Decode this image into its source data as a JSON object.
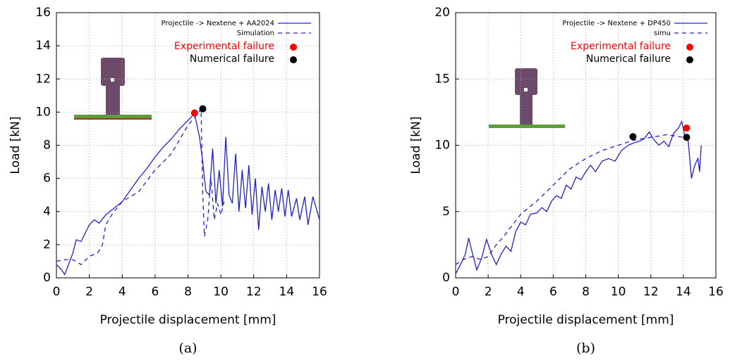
{
  "chart_data": [
    {
      "type": "line",
      "caption": "(a)",
      "xlabel": "Projectile displacement [mm]",
      "ylabel": "Load [kN]",
      "xlim": [
        0,
        16
      ],
      "ylim": [
        0,
        16
      ],
      "xticks": [
        0,
        2,
        4,
        6,
        8,
        10,
        12,
        14,
        16
      ],
      "yticks": [
        0,
        2,
        4,
        6,
        8,
        10,
        12,
        14,
        16
      ],
      "grid": true,
      "legend": "upper right",
      "series": [
        {
          "name": "Projectile -> Nextene + AA2024",
          "color": "#1f1fd0",
          "style": "solid",
          "x": [
            0,
            0.3,
            0.5,
            0.7,
            1,
            1.2,
            1.5,
            1.8,
            2,
            2.3,
            2.6,
            3,
            3.5,
            4,
            4.5,
            5,
            5.5,
            6,
            6.5,
            7,
            7.5,
            8,
            8.4,
            8.7,
            8.9,
            9.0,
            9.1,
            9.3,
            9.5,
            9.7,
            9.9,
            10.1,
            10.3,
            10.5,
            10.7,
            10.9,
            11.1,
            11.3,
            11.5,
            11.7,
            11.9,
            12.1,
            12.3,
            12.5,
            12.7,
            12.9,
            13.1,
            13.3,
            13.5,
            13.7,
            13.9,
            14.1,
            14.3,
            14.6,
            14.8,
            15.1,
            15.3,
            15.6,
            16
          ],
          "values": [
            0.8,
            0.5,
            0.2,
            0.7,
            1.5,
            2.3,
            2.2,
            2.8,
            3.2,
            3.5,
            3.3,
            3.8,
            4.2,
            4.6,
            5.3,
            6.0,
            6.6,
            7.3,
            7.9,
            8.4,
            9.0,
            9.5,
            9.9,
            8.5,
            7.0,
            6.0,
            5.2,
            5.0,
            7.8,
            4.5,
            6.5,
            4.3,
            8.5,
            5.0,
            4.5,
            7.5,
            4.0,
            6.5,
            4.2,
            6.8,
            3.8,
            6.0,
            2.9,
            5.5,
            4.0,
            5.7,
            3.5,
            5.3,
            4.0,
            5.4,
            3.7,
            5.3,
            3.7,
            4.8,
            3.5,
            4.9,
            3.2,
            4.9,
            3.5
          ]
        },
        {
          "name": "Simulation",
          "color": "#1f1fd0",
          "style": "dashed",
          "x": [
            0,
            0.5,
            1,
            1.5,
            2,
            2.5,
            2.8,
            3.0,
            3.3,
            3.5,
            4,
            5,
            6,
            7,
            8,
            8.5,
            8.8,
            8.9,
            9.0,
            9.2,
            9.4,
            9.6,
            9.8,
            10.0,
            10.2
          ],
          "values": [
            1.0,
            1.1,
            1.1,
            0.8,
            1.3,
            1.5,
            2.0,
            3.2,
            3.7,
            4.0,
            4.6,
            5.2,
            6.5,
            7.5,
            9.2,
            9.8,
            10.2,
            5,
            2.5,
            3.5,
            6.0,
            3.5,
            4.5,
            3.8,
            4.6
          ]
        },
        {
          "name": "Experimental failure",
          "color": "#ff0000",
          "style": "point",
          "x": [
            8.4
          ],
          "values": [
            9.95
          ]
        },
        {
          "name": "Numerical failure",
          "color": "#000000",
          "style": "point",
          "x": [
            8.9
          ],
          "values": [
            10.2
          ]
        }
      ]
    },
    {
      "type": "line",
      "caption": "(b)",
      "xlabel": "Projectile displacement [mm]",
      "ylabel": "Load [kN]",
      "xlim": [
        0,
        16
      ],
      "ylim": [
        0,
        20
      ],
      "xticks": [
        0,
        2,
        4,
        6,
        8,
        10,
        12,
        14,
        16
      ],
      "yticks": [
        0,
        5,
        10,
        15,
        20
      ],
      "grid": true,
      "legend": "upper right",
      "series": [
        {
          "name": "Projectile -> Nextene + DP450",
          "color": "#1f1fd0",
          "style": "solid",
          "x": [
            0,
            0.3,
            0.6,
            0.8,
            1.0,
            1.3,
            1.6,
            1.9,
            2.2,
            2.5,
            2.8,
            3.1,
            3.4,
            3.7,
            4.0,
            4.3,
            4.6,
            5,
            5.3,
            5.6,
            5.9,
            6.2,
            6.5,
            6.8,
            7.1,
            7.4,
            7.7,
            8,
            8.3,
            8.6,
            9,
            9.4,
            9.8,
            10.2,
            10.6,
            11,
            11.3,
            11.6,
            11.9,
            12.2,
            12.5,
            12.8,
            13.1,
            13.4,
            13.7,
            13.9,
            14.1,
            14.3,
            14.5,
            14.7,
            14.9,
            15.0,
            15.1
          ],
          "values": [
            0.3,
            1.0,
            1.8,
            3.0,
            2.0,
            0.6,
            1.5,
            2.9,
            1.8,
            1.0,
            1.8,
            2.4,
            2.0,
            3.5,
            4.2,
            4.0,
            4.8,
            4.9,
            5.3,
            5.0,
            5.8,
            6.2,
            6.0,
            7.0,
            6.7,
            7.6,
            7.4,
            8.0,
            8.5,
            8.0,
            8.8,
            9.0,
            8.8,
            9.6,
            10.0,
            10.2,
            10.3,
            10.5,
            11.0,
            10.4,
            10.0,
            10.3,
            9.9,
            10.9,
            11.3,
            11.8,
            10.6,
            10.3,
            7.5,
            8.5,
            9.0,
            8.0,
            10.0
          ]
        },
        {
          "name": "simu",
          "color": "#1f1fd0",
          "style": "dashed",
          "x": [
            0,
            0.5,
            1,
            1.5,
            2,
            2.5,
            3,
            4,
            5,
            6,
            7,
            8,
            9,
            10,
            11,
            12,
            13,
            14,
            14.3,
            14.5
          ],
          "values": [
            1.0,
            1.4,
            1.6,
            1.4,
            1.6,
            2.5,
            3.2,
            4.8,
            5.8,
            7.0,
            8.2,
            9.0,
            9.6,
            10.0,
            10.4,
            10.6,
            10.8,
            10.6,
            10.8,
            10.6
          ]
        },
        {
          "name": "Experimental failure",
          "color": "#ff0000",
          "style": "point",
          "x": [
            14.2
          ],
          "values": [
            11.3
          ]
        },
        {
          "name": "Numerical failure",
          "color": "#000000",
          "style": "point",
          "x": [
            10.9,
            14.2
          ],
          "values": [
            10.65,
            10.6
          ]
        }
      ]
    }
  ]
}
